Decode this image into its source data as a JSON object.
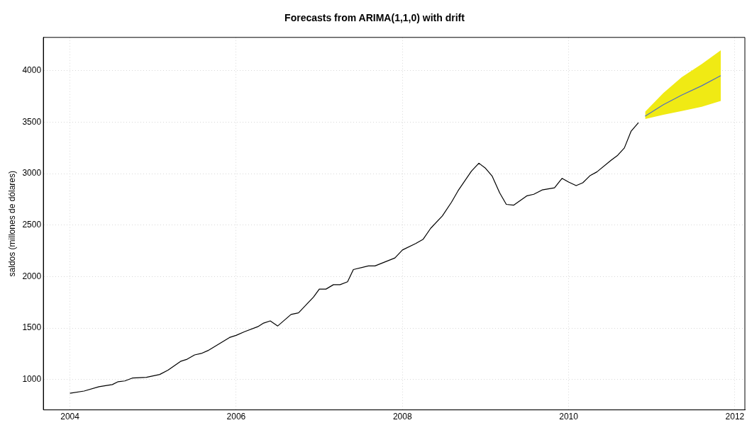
{
  "chart_data": {
    "type": "line",
    "title": "Forecasts from ARIMA(1,1,0) with drift",
    "ylabel": "saldos (millones de dólares)",
    "xlim": [
      2003.68,
      2012.12
    ],
    "ylim": [
      705,
      4323
    ],
    "xticks": [
      2004,
      2006,
      2008,
      2010,
      2012
    ],
    "yticks": [
      1000,
      1500,
      2000,
      2500,
      3000,
      3500,
      4000
    ],
    "grid": true,
    "legend": false,
    "marker": "none",
    "line_style": "solid",
    "series": [
      {
        "color": "#000000",
        "x": [
          2004.0,
          2004.17,
          2004.35,
          2004.51,
          2004.58,
          2004.66,
          2004.75,
          2004.92,
          2005.08,
          2005.18,
          2005.33,
          2005.41,
          2005.5,
          2005.58,
          2005.66,
          2005.92,
          2006.0,
          2006.1,
          2006.26,
          2006.33,
          2006.41,
          2006.5,
          2006.66,
          2006.75,
          2006.93,
          2007.0,
          2007.08,
          2007.17,
          2007.25,
          2007.34,
          2007.41,
          2007.59,
          2007.67,
          2007.91,
          2008.0,
          2008.16,
          2008.25,
          2008.34,
          2008.48,
          2008.59,
          2008.67,
          2008.83,
          2008.92,
          2009.0,
          2009.08,
          2009.17,
          2009.25,
          2009.34,
          2009.5,
          2009.58,
          2009.68,
          2009.83,
          2009.92,
          2010.0,
          2010.09,
          2010.17,
          2010.26,
          2010.34,
          2010.51,
          2010.59,
          2010.67,
          2010.75,
          2010.84
        ],
        "values": [
          866,
          888,
          930,
          951,
          979,
          986,
          1014,
          1021,
          1049,
          1091,
          1176,
          1197,
          1239,
          1253,
          1281,
          1408,
          1429,
          1464,
          1513,
          1548,
          1569,
          1520,
          1632,
          1647,
          1801,
          1878,
          1878,
          1921,
          1921,
          1949,
          2068,
          2103,
          2103,
          2181,
          2258,
          2321,
          2363,
          2469,
          2588,
          2722,
          2834,
          3024,
          3101,
          3052,
          2975,
          2813,
          2701,
          2694,
          2785,
          2799,
          2841,
          2862,
          2954,
          2918,
          2883,
          2911,
          2982,
          3017,
          3129,
          3178,
          3249,
          3410,
          3495
        ]
      },
      {
        "color": "#4f6fbf",
        "x": [
          2010.92,
          2011.14,
          2011.36,
          2011.6,
          2011.83
        ],
        "values": [
          3558,
          3670,
          3762,
          3853,
          3952
        ],
        "lower": [
          3530,
          3572,
          3607,
          3649,
          3706
        ],
        "upper": [
          3600,
          3783,
          3937,
          4064,
          4197
        ]
      }
    ]
  }
}
